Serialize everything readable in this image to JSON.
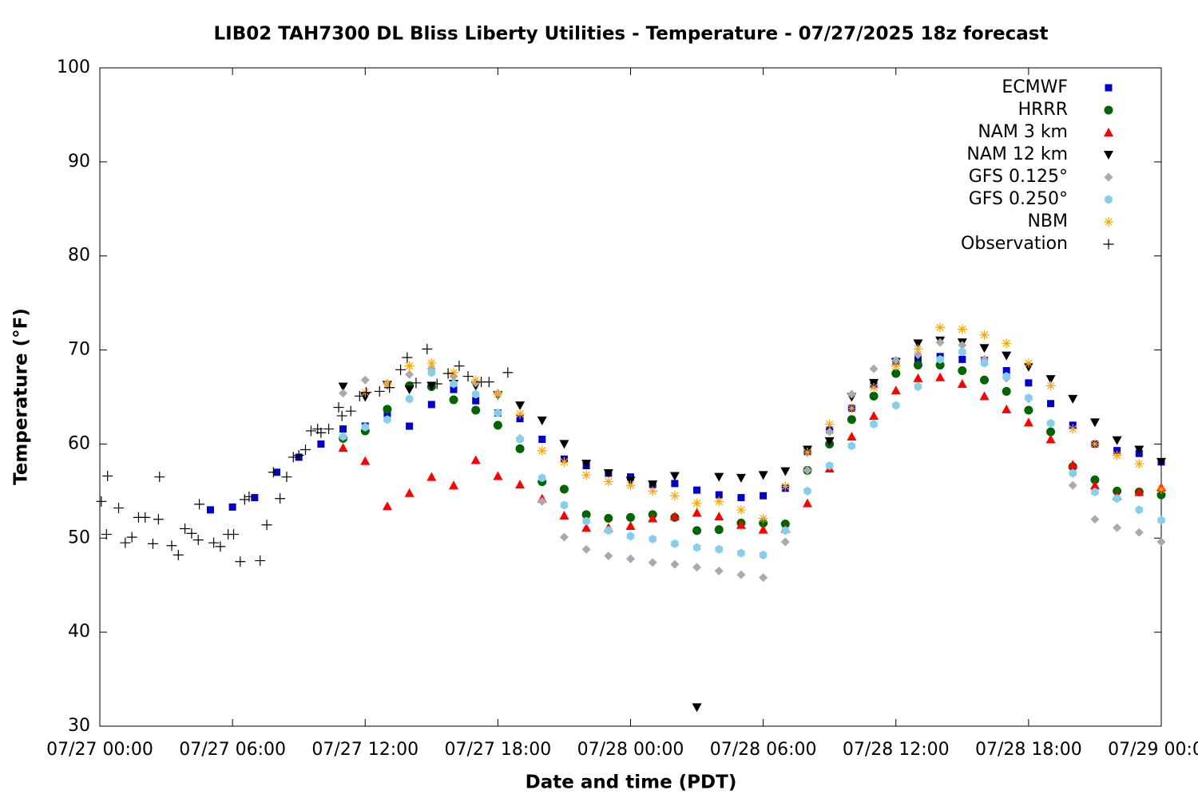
{
  "chart_data": {
    "type": "scatter",
    "title": "LIB02 TAH7300 DL Bliss Liberty Utilities - Temperature - 07/27/2025 18z forecast",
    "x_label": "Date and time (PDT)",
    "y_label": "Temperature (°F)",
    "xlim": [
      "07/27 00:00",
      "07/29 00:00"
    ],
    "xticks": [
      "07/27 00:00",
      "07/27 06:00",
      "07/27 12:00",
      "07/27 18:00",
      "07/28 00:00",
      "07/28 06:00",
      "07/28 12:00",
      "07/28 18:00",
      "07/29 00:00"
    ],
    "ylim": [
      30,
      100
    ],
    "yticks": [
      30,
      40,
      50,
      60,
      70,
      80,
      90,
      100
    ],
    "grid": false,
    "legend": "top right",
    "series": [
      {
        "name": "ECMWF",
        "color": "#0000cc",
        "marker": "square",
        "x": [
          "07/27 05:00",
          "07/27 06:00",
          "07/27 07:00",
          "07/27 08:00",
          "07/27 09:00",
          "07/27 10:00",
          "07/27 11:00",
          "07/27 12:00",
          "07/27 13:00",
          "07/27 14:00",
          "07/27 15:00",
          "07/27 16:00",
          "07/27 17:00",
          "07/27 18:00",
          "07/27 19:00",
          "07/27 20:00",
          "07/27 21:00",
          "07/27 22:00",
          "07/27 23:00",
          "07/28 00:00",
          "07/28 01:00",
          "07/28 02:00",
          "07/28 03:00",
          "07/28 04:00",
          "07/28 05:00",
          "07/28 06:00",
          "07/28 07:00",
          "07/28 08:00",
          "07/28 09:00",
          "07/28 10:00",
          "07/28 11:00",
          "07/28 12:00",
          "07/28 13:00",
          "07/28 14:00",
          "07/28 15:00",
          "07/28 16:00",
          "07/28 17:00",
          "07/28 18:00",
          "07/28 19:00",
          "07/28 20:00",
          "07/28 21:00",
          "07/28 22:00",
          "07/28 23:00",
          "07/29 00:00"
        ],
        "values": [
          53.0,
          53.3,
          54.3,
          57.0,
          58.6,
          60.0,
          61.6,
          61.9,
          63.2,
          61.9,
          64.2,
          65.8,
          64.6,
          63.3,
          62.7,
          60.5,
          58.4,
          57.7,
          56.9,
          56.5,
          55.7,
          55.8,
          55.1,
          54.6,
          54.3,
          54.5,
          55.3,
          59.2,
          61.5,
          63.8,
          66.3,
          68.8,
          69.0,
          69.3,
          69.0,
          68.9,
          67.8,
          66.5,
          64.3,
          62.0,
          60.0,
          59.3,
          59.0,
          58.1
        ]
      },
      {
        "name": "HRRR",
        "color": "#006400",
        "marker": "circle",
        "x": [
          "07/27 11:00",
          "07/27 12:00",
          "07/27 13:00",
          "07/27 14:00",
          "07/27 15:00",
          "07/27 16:00",
          "07/27 17:00",
          "07/27 18:00",
          "07/27 19:00",
          "07/27 20:00",
          "07/27 21:00",
          "07/27 22:00",
          "07/27 23:00",
          "07/28 00:00",
          "07/28 01:00",
          "07/28 02:00",
          "07/28 03:00",
          "07/28 04:00",
          "07/28 05:00",
          "07/28 06:00",
          "07/28 07:00",
          "07/28 08:00",
          "07/28 09:00",
          "07/28 10:00",
          "07/28 11:00",
          "07/28 12:00",
          "07/28 13:00",
          "07/28 14:00",
          "07/28 15:00",
          "07/28 16:00",
          "07/28 17:00",
          "07/28 18:00",
          "07/28 19:00",
          "07/28 20:00",
          "07/28 21:00",
          "07/28 22:00",
          "07/28 23:00",
          "07/29 00:00"
        ],
        "values": [
          60.6,
          61.4,
          63.7,
          66.2,
          66.1,
          64.7,
          63.6,
          62.0,
          59.5,
          56.0,
          55.2,
          52.5,
          52.1,
          52.2,
          52.5,
          52.2,
          50.8,
          50.9,
          51.6,
          51.6,
          51.5,
          57.2,
          60.0,
          62.6,
          65.1,
          67.5,
          68.4,
          68.4,
          67.8,
          66.8,
          65.6,
          63.6,
          61.3,
          57.6,
          56.2,
          55.0,
          54.9,
          54.6
        ]
      },
      {
        "name": "NAM 3 km",
        "color": "#ff0000",
        "marker": "triangle",
        "x": [
          "07/27 11:00",
          "07/27 12:00",
          "07/27 13:00",
          "07/27 14:00",
          "07/27 15:00",
          "07/27 16:00",
          "07/27 17:00",
          "07/27 18:00",
          "07/27 19:00",
          "07/27 20:00",
          "07/27 21:00",
          "07/27 22:00",
          "07/27 23:00",
          "07/28 00:00",
          "07/28 01:00",
          "07/28 02:00",
          "07/28 03:00",
          "07/28 04:00",
          "07/28 05:00",
          "07/28 06:00",
          "07/28 07:00",
          "07/28 08:00",
          "07/28 09:00",
          "07/28 10:00",
          "07/28 11:00",
          "07/28 12:00",
          "07/28 13:00",
          "07/28 14:00",
          "07/28 15:00",
          "07/28 16:00",
          "07/28 17:00",
          "07/28 18:00",
          "07/28 19:00",
          "07/28 20:00",
          "07/28 21:00",
          "07/28 22:00",
          "07/28 23:00",
          "07/29 00:00"
        ],
        "values": [
          59.6,
          58.2,
          53.4,
          54.8,
          56.5,
          55.6,
          58.3,
          56.6,
          55.7,
          54.2,
          52.4,
          51.1,
          51.1,
          51.3,
          52.1,
          52.3,
          52.7,
          52.3,
          51.4,
          50.9,
          51.0,
          53.7,
          57.4,
          60.8,
          63.0,
          65.7,
          67.0,
          67.1,
          66.4,
          65.1,
          63.7,
          62.3,
          60.5,
          57.8,
          55.6,
          54.5,
          54.9,
          55.4
        ]
      },
      {
        "name": "NAM 12 km",
        "color": "#000000",
        "marker": "triangle-down",
        "x": [
          "07/27 11:00",
          "07/27 12:00",
          "07/27 13:00",
          "07/27 14:00",
          "07/27 15:00",
          "07/27 16:00",
          "07/27 17:00",
          "07/27 18:00",
          "07/27 19:00",
          "07/27 20:00",
          "07/27 21:00",
          "07/27 22:00",
          "07/27 23:00",
          "07/28 00:00",
          "07/28 01:00",
          "07/28 02:00",
          "07/28 03:00",
          "07/28 04:00",
          "07/28 05:00",
          "07/28 06:00",
          "07/28 07:00",
          "07/28 08:00",
          "07/28 09:00",
          "07/28 10:00",
          "07/28 11:00",
          "07/28 12:00",
          "07/28 13:00",
          "07/28 14:00",
          "07/28 15:00",
          "07/28 16:00",
          "07/28 17:00",
          "07/28 18:00",
          "07/28 19:00",
          "07/28 20:00",
          "07/28 21:00",
          "07/28 22:00",
          "07/28 23:00",
          "07/29 00:00"
        ],
        "values": [
          66.1,
          65.0,
          66.3,
          65.8,
          66.2,
          66.4,
          66.2,
          65.2,
          64.1,
          62.5,
          60.0,
          57.9,
          56.9,
          56.1,
          55.7,
          56.6,
          32.0,
          56.5,
          56.4,
          56.7,
          57.1,
          59.4,
          60.3,
          65.0,
          66.5,
          68.7,
          70.7,
          71.0,
          70.8,
          70.2,
          69.4,
          68.2,
          66.9,
          64.8,
          62.3,
          60.4,
          59.4,
          58.1
        ]
      },
      {
        "name": "GFS 0.125°",
        "color": "#aaaaaa",
        "marker": "diamond",
        "x": [
          "07/27 11:00",
          "07/27 12:00",
          "07/27 13:00",
          "07/27 14:00",
          "07/27 15:00",
          "07/27 16:00",
          "07/27 17:00",
          "07/27 18:00",
          "07/27 19:00",
          "07/27 20:00",
          "07/27 21:00",
          "07/27 22:00",
          "07/27 23:00",
          "07/28 00:00",
          "07/28 01:00",
          "07/28 02:00",
          "07/28 03:00",
          "07/28 04:00",
          "07/28 05:00",
          "07/28 06:00",
          "07/28 07:00",
          "07/28 08:00",
          "07/28 09:00",
          "07/28 10:00",
          "07/28 11:00",
          "07/28 12:00",
          "07/28 13:00",
          "07/28 14:00",
          "07/28 15:00",
          "07/28 16:00",
          "07/28 17:00",
          "07/28 18:00",
          "07/28 19:00",
          "07/28 20:00",
          "07/28 21:00",
          "07/28 22:00",
          "07/28 23:00",
          "07/29 00:00"
        ],
        "values": [
          65.4,
          66.8,
          66.4,
          67.4,
          68.0,
          67.2,
          66.5,
          65.4,
          60.6,
          53.9,
          50.1,
          48.8,
          48.1,
          47.8,
          47.4,
          47.2,
          46.9,
          46.5,
          46.1,
          45.8,
          49.6,
          57.2,
          61.3,
          65.3,
          68.0,
          68.9,
          69.5,
          70.8,
          70.5,
          69.0,
          67.0,
          64.8,
          62.2,
          55.6,
          52.0,
          51.1,
          50.6,
          49.6
        ]
      },
      {
        "name": "GFS 0.250°",
        "color": "#87ceeb",
        "marker": "hexagon",
        "x": [
          "07/27 11:00",
          "07/27 12:00",
          "07/27 13:00",
          "07/27 14:00",
          "07/27 15:00",
          "07/27 16:00",
          "07/27 17:00",
          "07/27 18:00",
          "07/27 19:00",
          "07/27 20:00",
          "07/27 21:00",
          "07/27 22:00",
          "07/27 23:00",
          "07/28 00:00",
          "07/28 01:00",
          "07/28 02:00",
          "07/28 03:00",
          "07/28 04:00",
          "07/28 05:00",
          "07/28 06:00",
          "07/28 07:00",
          "07/28 08:00",
          "07/28 09:00",
          "07/28 10:00",
          "07/28 11:00",
          "07/28 12:00",
          "07/28 13:00",
          "07/28 14:00",
          "07/28 15:00",
          "07/28 16:00",
          "07/28 17:00",
          "07/28 18:00",
          "07/28 19:00",
          "07/28 20:00",
          "07/28 21:00",
          "07/28 22:00",
          "07/28 23:00",
          "07/29 00:00"
        ],
        "values": [
          60.8,
          61.8,
          62.6,
          64.8,
          67.6,
          66.4,
          65.3,
          63.3,
          60.5,
          56.4,
          53.5,
          51.8,
          50.8,
          50.2,
          49.9,
          49.4,
          49.0,
          48.8,
          48.4,
          48.2,
          50.8,
          55.0,
          57.7,
          59.8,
          62.1,
          64.1,
          66.1,
          69.0,
          69.8,
          68.6,
          67.2,
          64.9,
          62.2,
          56.9,
          54.9,
          54.2,
          53.0,
          51.9
        ]
      },
      {
        "name": "NBM",
        "color": "#ffa500",
        "marker": "asterisk",
        "x": [
          "07/27 12:00",
          "07/27 13:00",
          "07/27 14:00",
          "07/27 15:00",
          "07/27 16:00",
          "07/27 17:00",
          "07/27 18:00",
          "07/27 19:00",
          "07/27 20:00",
          "07/27 21:00",
          "07/27 22:00",
          "07/27 23:00",
          "07/28 00:00",
          "07/28 01:00",
          "07/28 02:00",
          "07/28 03:00",
          "07/28 04:00",
          "07/28 05:00",
          "07/28 06:00",
          "07/28 07:00",
          "07/28 08:00",
          "07/28 09:00",
          "07/28 10:00",
          "07/28 11:00",
          "07/28 12:00",
          "07/28 13:00",
          "07/28 14:00",
          "07/28 15:00",
          "07/28 16:00",
          "07/28 17:00",
          "07/28 18:00",
          "07/28 19:00",
          "07/28 20:00",
          "07/28 21:00",
          "07/28 22:00",
          "07/28 23:00",
          "07/29 00:00"
        ],
        "values": [
          65.5,
          66.4,
          68.3,
          68.6,
          67.6,
          66.8,
          65.3,
          63.2,
          59.3,
          58.1,
          56.7,
          56.0,
          55.6,
          55.0,
          54.5,
          53.7,
          53.9,
          53.0,
          52.1,
          55.5,
          59.1,
          62.1,
          63.8,
          66.0,
          68.3,
          70.1,
          72.4,
          72.2,
          71.6,
          70.7,
          68.6,
          66.2,
          61.6,
          60.0,
          58.8,
          57.9,
          55.2
        ]
      },
      {
        "name": "Observation",
        "color": "#000000",
        "marker": "plus",
        "x": [
          "07/27 00:04",
          "07/27 00:18",
          "07/27 00:21",
          "07/27 00:51",
          "07/27 01:09",
          "07/27 01:27",
          "07/27 01:45",
          "07/27 02:03",
          "07/27 02:24",
          "07/27 02:39",
          "07/27 02:42",
          "07/27 03:15",
          "07/27 03:33",
          "07/27 03:51",
          "07/27 04:09",
          "07/27 04:27",
          "07/27 04:30",
          "07/27 05:09",
          "07/27 05:27",
          "07/27 05:48",
          "07/27 06:03",
          "07/27 06:21",
          "07/27 06:33",
          "07/27 06:45",
          "07/27 07:15",
          "07/27 07:33",
          "07/27 07:51",
          "07/27 08:09",
          "07/27 08:27",
          "07/27 08:45",
          "07/27 09:00",
          "07/27 09:18",
          "07/27 09:33",
          "07/27 09:51",
          "07/27 10:00",
          "07/27 10:21",
          "07/27 10:48",
          "07/27 10:57",
          "07/27 11:21",
          "07/27 11:45",
          "07/27 12:03",
          "07/27 12:39",
          "07/27 13:06",
          "07/27 13:36",
          "07/27 13:54",
          "07/27 14:18",
          "07/27 14:48",
          "07/27 15:15",
          "07/27 15:45",
          "07/27 16:15",
          "07/27 16:39",
          "07/27 17:15",
          "07/27 17:36",
          "07/27 18:27"
        ],
        "values": [
          53.9,
          50.4,
          56.6,
          53.2,
          49.5,
          50.1,
          52.2,
          52.2,
          49.4,
          52.0,
          56.5,
          49.2,
          48.2,
          51.0,
          50.5,
          49.8,
          53.6,
          49.5,
          49.1,
          50.4,
          50.4,
          47.5,
          54.1,
          54.4,
          47.6,
          51.4,
          57.0,
          54.2,
          56.5,
          58.6,
          58.8,
          59.4,
          61.4,
          61.6,
          61.2,
          61.6,
          63.9,
          63.0,
          63.5,
          65.1,
          65.5,
          65.6,
          66.0,
          67.9,
          69.2,
          66.5,
          70.1,
          66.4,
          67.5,
          68.3,
          67.2,
          66.6,
          66.6,
          67.6
        ]
      }
    ]
  }
}
